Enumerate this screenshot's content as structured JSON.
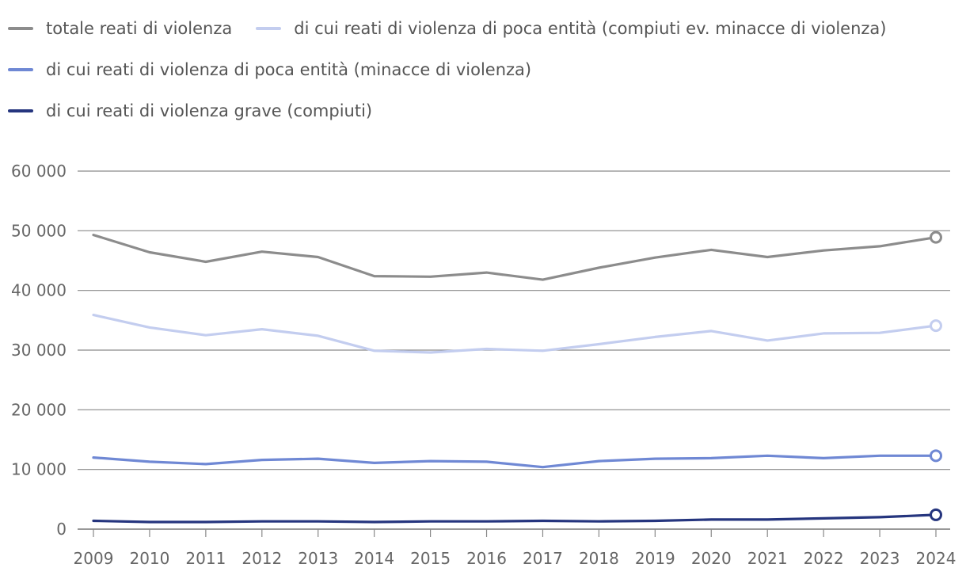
{
  "chart_data": {
    "type": "line",
    "title": "",
    "xlabel": "",
    "ylabel": "",
    "ylim": [
      0,
      60000
    ],
    "yticks": [
      0,
      10000,
      20000,
      30000,
      40000,
      50000,
      60000
    ],
    "ytick_labels": [
      "0",
      "10 000",
      "20 000",
      "30 000",
      "40 000",
      "50 000",
      "60 000"
    ],
    "x": [
      "2009",
      "2010",
      "2011",
      "2012",
      "2013",
      "2014",
      "2015",
      "2016",
      "2017",
      "2018",
      "2019",
      "2020",
      "2021",
      "2022",
      "2023",
      "2024"
    ],
    "grid": true,
    "legend_position": "top-left",
    "series": [
      {
        "name": "totale reati di violenza",
        "color": "#8c8c8c",
        "values": [
          49300,
          46400,
          44800,
          46500,
          45600,
          42400,
          42300,
          43000,
          41800,
          43800,
          45500,
          46800,
          45600,
          46700,
          47400,
          48900
        ]
      },
      {
        "name": "di cui reati di violenza di poca entità (compiuti ev. minacce di violenza)",
        "color": "#c3cdef",
        "values": [
          35900,
          33800,
          32500,
          33500,
          32400,
          29900,
          29600,
          30200,
          29900,
          31000,
          32200,
          33200,
          31600,
          32800,
          32900,
          34100
        ]
      },
      {
        "name": "di cui reati di violenza di poca entità (minacce di violenza)",
        "color": "#6f88d4",
        "values": [
          12000,
          11300,
          10900,
          11600,
          11800,
          11100,
          11400,
          11300,
          10400,
          11400,
          11800,
          11900,
          12300,
          11900,
          12300,
          12300
        ]
      },
      {
        "name": "di cui reati di violenza grave (compiuti)",
        "color": "#25357e",
        "values": [
          1400,
          1200,
          1200,
          1300,
          1300,
          1200,
          1300,
          1300,
          1400,
          1300,
          1400,
          1600,
          1600,
          1800,
          2000,
          2400
        ]
      }
    ]
  }
}
